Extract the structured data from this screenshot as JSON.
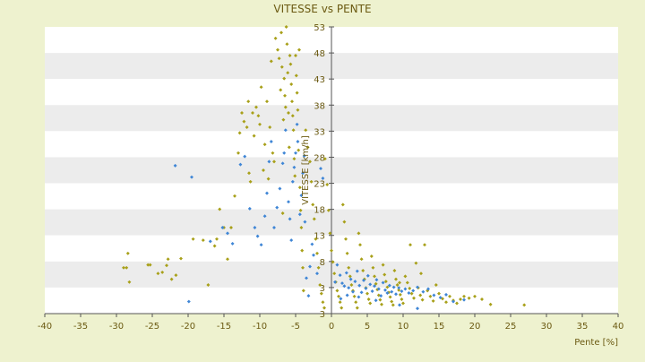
{
  "colors": {
    "page_background": "#eef2cf",
    "plot_background": "#ffffff",
    "band": "#ececec",
    "text": "#6b5a12",
    "axis": "#555555",
    "series_gold": "#a8a019",
    "series_blue": "#3f86d6"
  },
  "chart_data": {
    "type": "scatter",
    "title": "VITESSE vs PENTE",
    "xlabel": "Pente [%]",
    "ylabel": "VITESSE [km/h]",
    "xlim": [
      -40,
      40
    ],
    "ylim": [
      3,
      53
    ],
    "x_ticks": [
      "-40",
      "-35",
      "-30",
      "-25",
      "-20",
      "-15",
      "-10",
      "-5",
      "0",
      "5",
      "10",
      "15",
      "20",
      "25",
      "30",
      "35",
      "40"
    ],
    "y_ticks": [
      "3",
      "3",
      "8",
      "13",
      "18",
      "23",
      "28",
      "33",
      "38",
      "43",
      "48",
      "53"
    ],
    "grid": "alternating horizontal bands",
    "legend": "none",
    "series": [
      {
        "color": "#a8a019",
        "points": [
          [
            -29,
            11
          ],
          [
            -28.6,
            11
          ],
          [
            -28.4,
            13.5
          ],
          [
            -28.2,
            8.5
          ],
          [
            -25.6,
            11.5
          ],
          [
            -25.3,
            11.5
          ],
          [
            -24.2,
            10
          ],
          [
            -23.6,
            10.2
          ],
          [
            -23,
            11.4
          ],
          [
            -22.8,
            12.5
          ],
          [
            -22.3,
            9
          ],
          [
            -21.7,
            9.7
          ],
          [
            -21,
            12.6
          ],
          [
            -19.3,
            16
          ],
          [
            -17.9,
            15.8
          ],
          [
            -17.2,
            8
          ],
          [
            -16.3,
            14.8
          ],
          [
            -16,
            16
          ],
          [
            -15.6,
            21.2
          ],
          [
            -15,
            18
          ],
          [
            -14.5,
            12.5
          ],
          [
            -14,
            18
          ],
          [
            -13.5,
            23.5
          ],
          [
            -13,
            31
          ],
          [
            -12.8,
            34.5
          ],
          [
            -12.5,
            38
          ],
          [
            -12.2,
            36.5
          ],
          [
            -11.8,
            35.5
          ],
          [
            -11.6,
            40
          ],
          [
            -11.5,
            27.5
          ],
          [
            -11.3,
            26
          ],
          [
            -11,
            38
          ],
          [
            -10.8,
            34
          ],
          [
            -10.5,
            39
          ],
          [
            -10.2,
            37.5
          ],
          [
            -10,
            36
          ],
          [
            -9.8,
            42.5
          ],
          [
            -9.5,
            28
          ],
          [
            -9.3,
            32.5
          ],
          [
            -9,
            40
          ],
          [
            -8.8,
            26.5
          ],
          [
            -8.6,
            35.5
          ],
          [
            -8.4,
            47
          ],
          [
            -8.2,
            31
          ],
          [
            -8,
            29.5
          ],
          [
            -7.8,
            51
          ],
          [
            -7.5,
            49
          ],
          [
            -7.3,
            47.5
          ],
          [
            -7.1,
            42
          ],
          [
            -7,
            52
          ],
          [
            -6.9,
            46
          ],
          [
            -6.8,
            20.5
          ],
          [
            -6.7,
            36.8
          ],
          [
            -6.6,
            44
          ],
          [
            -6.5,
            41
          ],
          [
            -6.4,
            39
          ],
          [
            -6.3,
            53
          ],
          [
            -6.2,
            50
          ],
          [
            -6.1,
            45
          ],
          [
            -6,
            38
          ],
          [
            -5.9,
            32
          ],
          [
            -5.8,
            48
          ],
          [
            -5.7,
            46.5
          ],
          [
            -5.6,
            43
          ],
          [
            -5.5,
            40
          ],
          [
            -5.4,
            37.5
          ],
          [
            -5.3,
            35
          ],
          [
            -5.2,
            30
          ],
          [
            -5.1,
            27
          ],
          [
            -5,
            48
          ],
          [
            -4.9,
            44.5
          ],
          [
            -4.8,
            41.5
          ],
          [
            -4.7,
            38.5
          ],
          [
            -4.6,
            31.5
          ],
          [
            -4.5,
            49
          ],
          [
            -4.4,
            25
          ],
          [
            -4.3,
            21
          ],
          [
            -4.2,
            18
          ],
          [
            -4.1,
            14
          ],
          [
            -4,
            11
          ],
          [
            -3.9,
            7
          ],
          [
            -3.6,
            35
          ],
          [
            -3.3,
            32
          ],
          [
            -3,
            29.5
          ],
          [
            -2.8,
            26
          ],
          [
            -2.6,
            22
          ],
          [
            -2.4,
            19.5
          ],
          [
            -2.2,
            16
          ],
          [
            -2,
            13.5
          ],
          [
            -1.8,
            11
          ],
          [
            -1.6,
            8
          ],
          [
            -1.4,
            6.5
          ],
          [
            -1.2,
            5
          ],
          [
            -1,
            4
          ],
          [
            -0.9,
            30
          ],
          [
            -0.6,
            25.5
          ],
          [
            -0.4,
            21
          ],
          [
            -0.2,
            17
          ],
          [
            0,
            14
          ],
          [
            0.2,
            12
          ],
          [
            0.4,
            10
          ],
          [
            0.6,
            8.5
          ],
          [
            0.8,
            7
          ],
          [
            1,
            6
          ],
          [
            1.2,
            5
          ],
          [
            1.4,
            4
          ],
          [
            1.6,
            22
          ],
          [
            1.8,
            19
          ],
          [
            2,
            16
          ],
          [
            2.2,
            13.5
          ],
          [
            2.4,
            11
          ],
          [
            2.6,
            9.5
          ],
          [
            2.8,
            8
          ],
          [
            3,
            7
          ],
          [
            3.2,
            6
          ],
          [
            3.4,
            5
          ],
          [
            3.6,
            4
          ],
          [
            3.8,
            17
          ],
          [
            4,
            15
          ],
          [
            4.2,
            12.5
          ],
          [
            4.4,
            10.5
          ],
          [
            4.6,
            9
          ],
          [
            4.8,
            7.5
          ],
          [
            5,
            6.5
          ],
          [
            5.2,
            5.5
          ],
          [
            5.4,
            4.8
          ],
          [
            5.6,
            13
          ],
          [
            5.8,
            11
          ],
          [
            6,
            9.5
          ],
          [
            6.2,
            8.2
          ],
          [
            6.4,
            7.2
          ],
          [
            6.6,
            6.2
          ],
          [
            6.8,
            5.4
          ],
          [
            7,
            4.6
          ],
          [
            7.2,
            11.5
          ],
          [
            7.4,
            9.8
          ],
          [
            7.6,
            8.6
          ],
          [
            7.8,
            7.6
          ],
          [
            8,
            6.7
          ],
          [
            8.2,
            5.9
          ],
          [
            8.4,
            5.1
          ],
          [
            8.6,
            4.5
          ],
          [
            8.8,
            10.5
          ],
          [
            9,
            9
          ],
          [
            9.2,
            8
          ],
          [
            9.4,
            7.1
          ],
          [
            9.6,
            6.3
          ],
          [
            9.8,
            5.5
          ],
          [
            10,
            4.8
          ],
          [
            10.3,
            9.5
          ],
          [
            10.6,
            8.4
          ],
          [
            10.9,
            7.4
          ],
          [
            11.2,
            6.5
          ],
          [
            11.5,
            5.7
          ],
          [
            11.8,
            11.8
          ],
          [
            12.1,
            7.5
          ],
          [
            12.4,
            6.2
          ],
          [
            12.7,
            5.4
          ],
          [
            13,
            15
          ],
          [
            13.4,
            7
          ],
          [
            13.8,
            6
          ],
          [
            14.2,
            5.2
          ],
          [
            14.6,
            8
          ],
          [
            15,
            6.5
          ],
          [
            15.5,
            5.6
          ],
          [
            16,
            5
          ],
          [
            16.5,
            6
          ],
          [
            17,
            5.3
          ],
          [
            17.5,
            4.8
          ],
          [
            18,
            5.5
          ],
          [
            18.5,
            6
          ],
          [
            19.2,
            5.7
          ],
          [
            20,
            6
          ],
          [
            21,
            5.5
          ],
          [
            22.2,
            4.6
          ],
          [
            26.9,
            4.5
          ],
          [
            12.5,
            10
          ],
          [
            11,
            15
          ],
          [
            9.5,
            8.4
          ]
        ]
      },
      {
        "color": "#3f86d6",
        "points": [
          [
            -21.8,
            28.8
          ],
          [
            -19.9,
            5.1
          ],
          [
            -19.5,
            26.8
          ],
          [
            -16.9,
            15.6
          ],
          [
            -15.2,
            18
          ],
          [
            -14.5,
            17
          ],
          [
            -13.8,
            15.2
          ],
          [
            -12.7,
            29
          ],
          [
            -12.1,
            30.4
          ],
          [
            -11.4,
            21.3
          ],
          [
            -10.7,
            18
          ],
          [
            -10.3,
            16.5
          ],
          [
            -9.8,
            15
          ],
          [
            -9.3,
            20
          ],
          [
            -9,
            24
          ],
          [
            -8.7,
            29.5
          ],
          [
            -8.4,
            33
          ],
          [
            -8,
            18
          ],
          [
            -7.6,
            21.5
          ],
          [
            -7.2,
            24.8
          ],
          [
            -6.8,
            29.2
          ],
          [
            -6.6,
            31
          ],
          [
            -6.4,
            35
          ],
          [
            -6,
            22.5
          ],
          [
            -5.8,
            19.5
          ],
          [
            -5.6,
            15.8
          ],
          [
            -5.4,
            26
          ],
          [
            -5.2,
            28.5
          ],
          [
            -5,
            31
          ],
          [
            -4.8,
            36
          ],
          [
            -4.7,
            33
          ],
          [
            -4.4,
            20.3
          ],
          [
            -4.2,
            23.6
          ],
          [
            -4,
            27.5
          ],
          [
            -3.8,
            30.5
          ],
          [
            -3.7,
            19
          ],
          [
            -3.5,
            9.2
          ],
          [
            -3.2,
            6.1
          ],
          [
            -3,
            11.2
          ],
          [
            -2.7,
            15.1
          ],
          [
            -2.5,
            13.2
          ],
          [
            -2,
            10
          ],
          [
            -1.5,
            28.3
          ],
          [
            -1.2,
            26.6
          ],
          [
            0.5,
            8.5
          ],
          [
            0.8,
            11.5
          ],
          [
            1.2,
            9.7
          ],
          [
            1.5,
            8.3
          ],
          [
            1.8,
            7.8
          ],
          [
            2.1,
            10.1
          ],
          [
            2.4,
            7.5
          ],
          [
            2.7,
            9
          ],
          [
            3,
            6.8
          ],
          [
            3.3,
            8.6
          ],
          [
            3.6,
            10.4
          ],
          [
            3.9,
            7.9
          ],
          [
            4.2,
            6.7
          ],
          [
            4.5,
            8.8
          ],
          [
            4.8,
            7.4
          ],
          [
            5.1,
            9.6
          ],
          [
            5.4,
            8.1
          ],
          [
            5.7,
            6.9
          ],
          [
            6,
            7.8
          ],
          [
            6.3,
            8.9
          ],
          [
            6.6,
            7.3
          ],
          [
            6.9,
            6.1
          ],
          [
            7.2,
            8.4
          ],
          [
            7.5,
            7.1
          ],
          [
            7.8,
            6.6
          ],
          [
            8.1,
            7.9
          ],
          [
            8.4,
            6.8
          ],
          [
            8.7,
            7.6
          ],
          [
            9,
            6.4
          ],
          [
            9.4,
            7.5
          ],
          [
            9.8,
            6.9
          ],
          [
            10.3,
            7.3
          ],
          [
            10.8,
            6.6
          ],
          [
            11.4,
            7
          ],
          [
            12,
            7.6
          ],
          [
            12.8,
            6.8
          ],
          [
            13.5,
            7.3
          ],
          [
            14.3,
            6.2
          ],
          [
            15.2,
            5.8
          ],
          [
            16,
            6.3
          ],
          [
            17,
            5.1
          ],
          [
            18.5,
            5.4
          ],
          [
            12,
            3.9
          ],
          [
            9.5,
            4.5
          ],
          [
            6.2,
            5.3
          ],
          [
            3.8,
            5.9
          ],
          [
            2.2,
            6.2
          ],
          [
            1.3,
            5.6
          ]
        ]
      }
    ]
  }
}
